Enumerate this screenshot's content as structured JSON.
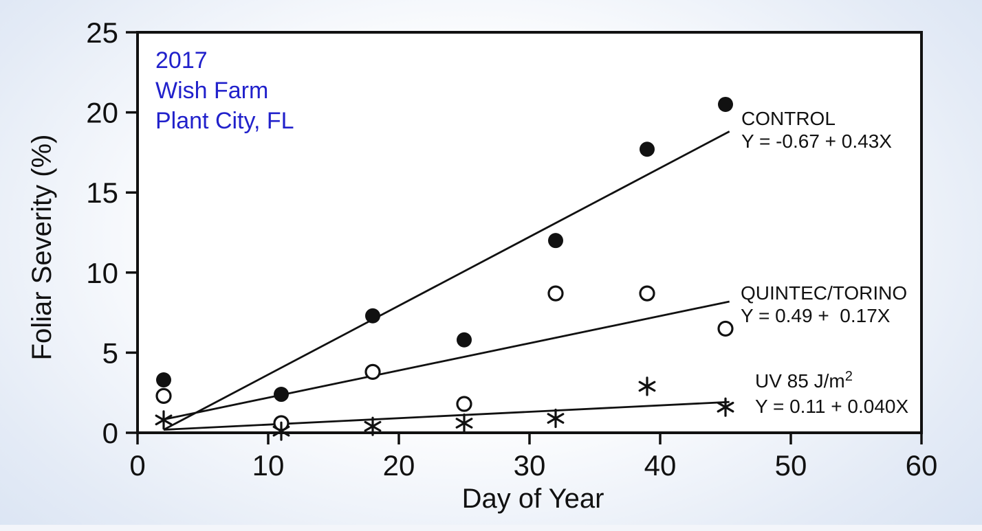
{
  "page": {
    "background_edge_color": "#c5d5ed",
    "background_center_color": "#ffffff",
    "annotation_color": "#2121cb",
    "ink_color": "#111111"
  },
  "annotation": {
    "lines": [
      "2017",
      "Wish Farm",
      "Plant City, FL"
    ]
  },
  "chart_data": {
    "type": "scatter",
    "title": "",
    "xlabel": "Day of Year",
    "ylabel": "Foliar Severity (%)",
    "xlim": [
      0,
      60
    ],
    "ylim": [
      0,
      25
    ],
    "xticks": [
      0,
      10,
      20,
      30,
      40,
      50,
      60
    ],
    "yticks": [
      0,
      5,
      10,
      15,
      20,
      25
    ],
    "grid": false,
    "legend_position": "right of regression line ends, inside plot",
    "x": [
      2,
      11,
      18,
      25,
      32,
      39,
      45
    ],
    "series": [
      {
        "name": "CONTROL",
        "marker": "filled-circle",
        "values": [
          3.3,
          2.4,
          7.3,
          5.8,
          12.0,
          17.7,
          20.5
        ],
        "fit": {
          "intercept": -0.67,
          "slope": 0.43,
          "label": "Y = -0.67 + 0.43X",
          "x_start": 2,
          "x_end": 45.3
        }
      },
      {
        "name": "QUINTEC/TORINO",
        "marker": "open-circle",
        "values": [
          2.3,
          0.6,
          3.8,
          1.8,
          8.7,
          8.7,
          6.5
        ],
        "fit": {
          "intercept": 0.49,
          "slope": 0.17,
          "label": "Y = 0.49 +  0.17X",
          "x_start": 2,
          "x_end": 45.3
        }
      },
      {
        "name": "UV 85 J/m",
        "name_superscript": "2",
        "marker": "asterisk",
        "values": [
          0.8,
          0.1,
          0.4,
          0.6,
          0.9,
          2.9,
          1.6
        ],
        "fit": {
          "intercept": 0.11,
          "slope": 0.04,
          "label": "Y = 0.11 + 0.040X",
          "x_start": 2,
          "x_end": 45.3
        }
      }
    ]
  }
}
